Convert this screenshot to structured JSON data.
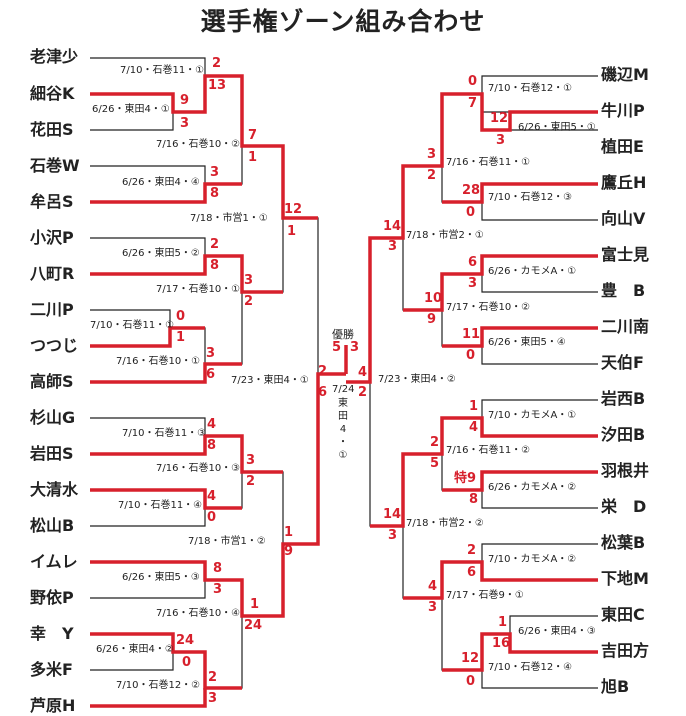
{
  "title": "選手権ゾーン組み合わせ",
  "colors": {
    "win": "#d7202c",
    "lose": "#222222"
  },
  "left_teams": [
    "老津少",
    "細谷K",
    "花田S",
    "石巻W",
    "牟呂S",
    "小沢P",
    "八町R",
    "二川P",
    "つつじ",
    "高師S",
    "杉山G",
    "岩田S",
    "大清水",
    "松山B",
    "イムレ",
    "野依P",
    "幸　Y",
    "多米F",
    "芦原H"
  ],
  "right_teams": [
    "磯辺M",
    "牛川P",
    "植田E",
    "鷹丘H",
    "向山V",
    "富士見",
    "豊　B",
    "二川南",
    "天伯F",
    "岩西B",
    "汐田B",
    "羽根井",
    "栄　D",
    "松葉B",
    "下地M",
    "東田C",
    "吉田方",
    "旭B"
  ],
  "final": {
    "label": "優勝",
    "score_left": "5",
    "score_right": "3",
    "date": "7/24",
    "venue": [
      "東",
      "田",
      "4",
      "・",
      "①"
    ]
  },
  "games": [
    {
      "info": "7/10・石巻11・①",
      "s1": "2",
      "s2": "13"
    },
    {
      "info": "6/26・東田4・①",
      "s1": "9",
      "s2": "3"
    },
    {
      "info": "7/16・石巻10・②",
      "s1": "7",
      "s2": "1"
    },
    {
      "info": "6/26・東田4・④",
      "s1": "3",
      "s2": "8"
    },
    {
      "info": "7/18・市営1・①",
      "s1": "12",
      "s2": "1"
    },
    {
      "info": "6/26・東田5・②",
      "s1": "2",
      "s2": "8"
    },
    {
      "info": "7/17・石巻10・①",
      "s1": "3",
      "s2": "2"
    },
    {
      "info": "7/10・石巻11・①",
      "s1": "0",
      "s2": "1"
    },
    {
      "info": "7/16・石巻10・①",
      "s1": "3",
      "s2": "6"
    },
    {
      "info": "7/23・東田4・①",
      "s1": "2",
      "s2": "6"
    },
    {
      "info": "7/10・石巻11・③",
      "s1": "4",
      "s2": "8"
    },
    {
      "info": "7/16・石巻10・③",
      "s1": "3",
      "s2": "2"
    },
    {
      "info": "7/10・石巻11・④",
      "s1": "4",
      "s2": "0"
    },
    {
      "info": "7/18・市営1・②",
      "s1": "1",
      "s2": "9"
    },
    {
      "info": "6/26・東田5・③",
      "s1": "8",
      "s2": "3"
    },
    {
      "info": "7/16・石巻10・④",
      "s1": "1",
      "s2": "24"
    },
    {
      "info": "6/26・東田4・②",
      "s1": "24",
      "s2": "0"
    },
    {
      "info": "7/10・石巻12・②",
      "s1": "2",
      "s2": "3"
    },
    {
      "info": "7/10・石巻12・①",
      "s1": "0",
      "s2": "7"
    },
    {
      "info": "6/26・東田5・①",
      "s1": "12",
      "s2": "3"
    },
    {
      "info": "7/16・石巻11・①",
      "s1": "3",
      "s2": "2"
    },
    {
      "info": "7/10・石巻12・③",
      "s1": "28",
      "s2": "0"
    },
    {
      "info": "7/18・市営2・①",
      "s1": "14",
      "s2": "3"
    },
    {
      "info": "6/26・カモメA・①",
      "s1": "6",
      "s2": "3"
    },
    {
      "info": "7/17・石巻10・②",
      "s1": "10",
      "s2": "9"
    },
    {
      "info": "6/26・東田5・④",
      "s1": "11",
      "s2": "0"
    },
    {
      "info": "7/23・東田4・②",
      "s1": "4",
      "s2": "2"
    },
    {
      "info": "7/10・カモメA・①",
      "s1": "1",
      "s2": "4"
    },
    {
      "info": "7/16・石巻11・②",
      "s1": "2",
      "s2": "5"
    },
    {
      "info": "6/26・カモメA・②",
      "s1": "特9",
      "s2": "8"
    },
    {
      "info": "7/18・市営2・②",
      "s1": "14",
      "s2": "3"
    },
    {
      "info": "7/10・カモメA・②",
      "s1": "2",
      "s2": "6"
    },
    {
      "info": "7/17・石巻9・①",
      "s1": "4",
      "s2": "3"
    },
    {
      "info": "6/26・東田4・③",
      "s1": "1",
      "s2": "16"
    },
    {
      "info": "7/10・石巻12・④",
      "s1": "12",
      "s2": "0"
    }
  ]
}
